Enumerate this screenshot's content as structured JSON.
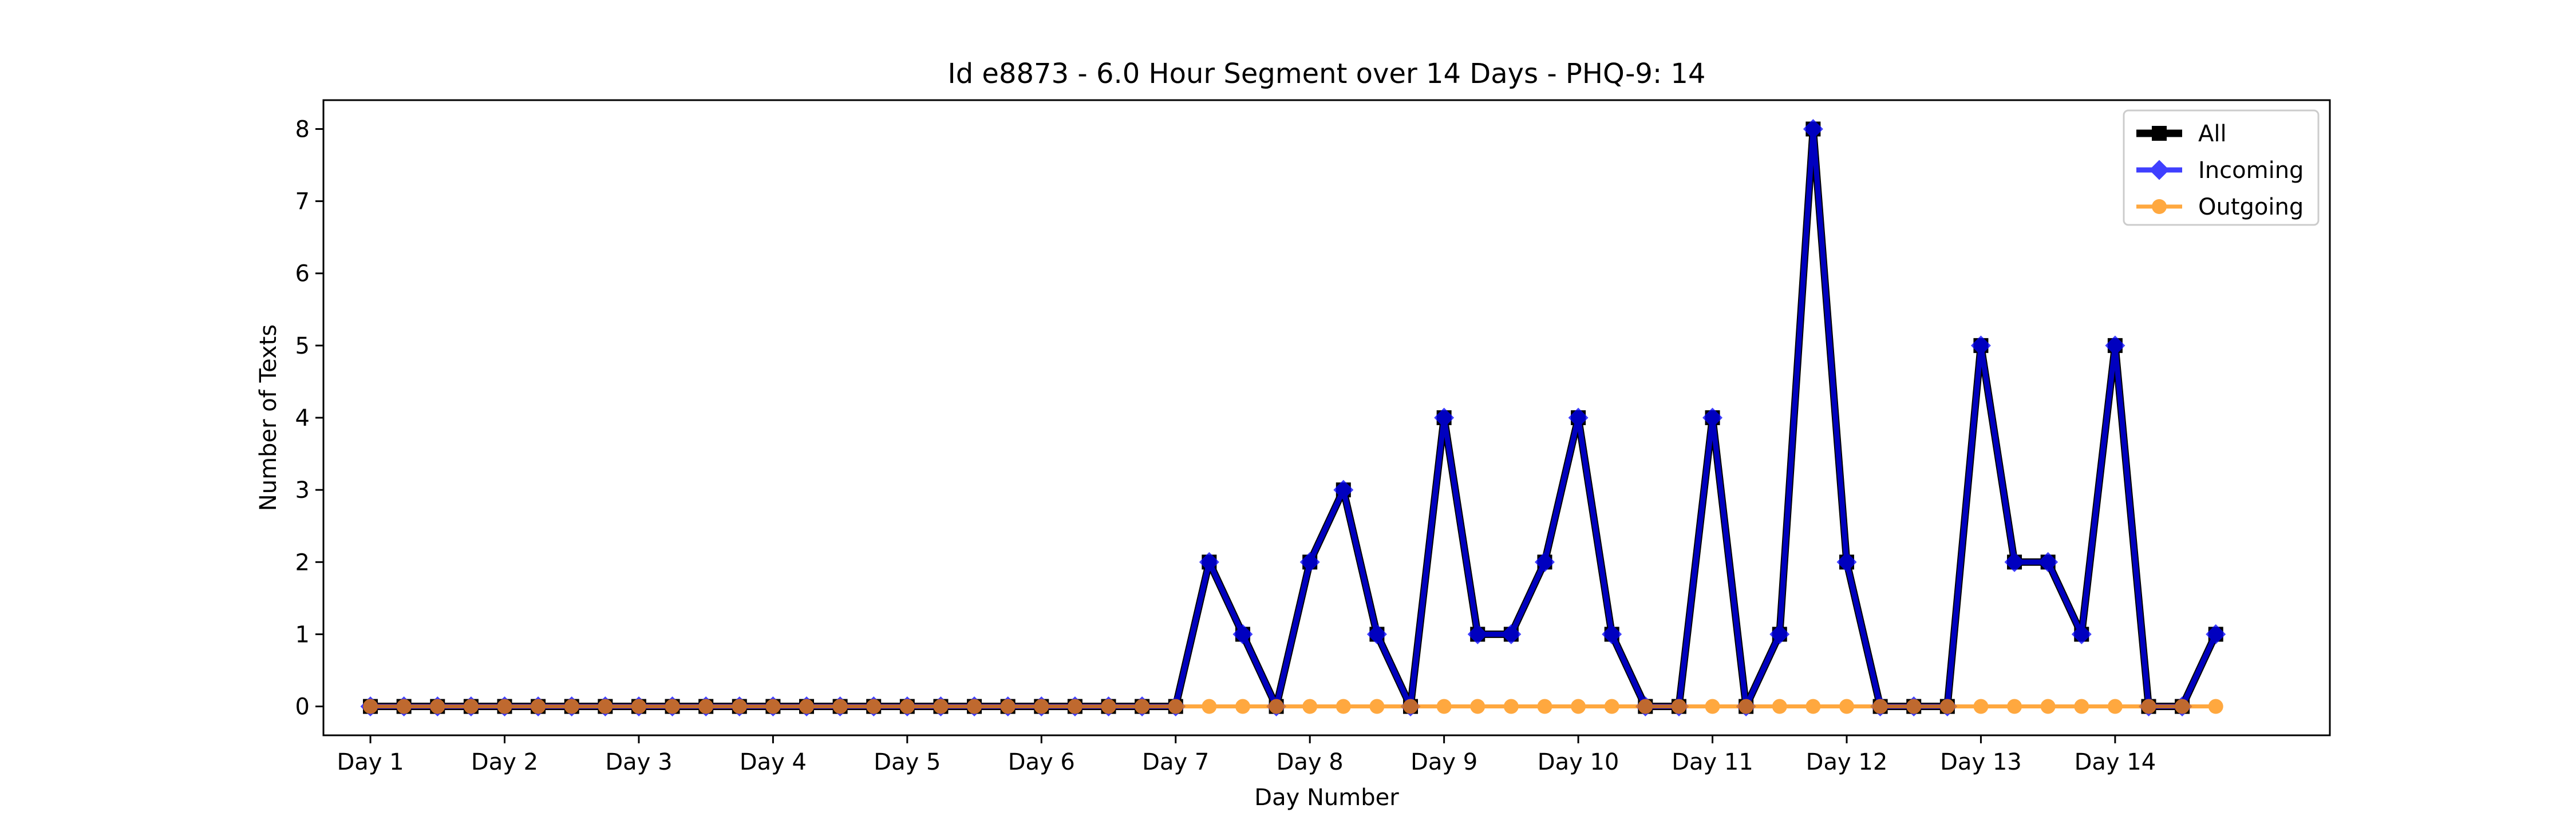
{
  "chart_data": {
    "type": "line",
    "title": "Id e8873 - 6.0 Hour Segment over 14 Days - PHQ-9: 14",
    "xlabel": "Day Number",
    "ylabel": "Number of Texts",
    "ylim": [
      -0.4,
      8.4
    ],
    "xlim": [
      -1.4,
      58.4
    ],
    "yticks": [
      0,
      1,
      2,
      3,
      4,
      5,
      6,
      7,
      8
    ],
    "xtick_positions": [
      0,
      4,
      8,
      12,
      16,
      20,
      24,
      28,
      32,
      36,
      40,
      44,
      48,
      52
    ],
    "xtick_labels": [
      "Day 1",
      "Day 2",
      "Day 3",
      "Day 4",
      "Day 5",
      "Day 6",
      "Day 7",
      "Day 8",
      "Day 9",
      "Day 10",
      "Day 11",
      "Day 12",
      "Day 13",
      "Day 14"
    ],
    "grid": false,
    "legend_position": "top-right",
    "series": [
      {
        "name": "All",
        "color": "#000000",
        "marker": "square",
        "values": [
          0,
          0,
          0,
          0,
          0,
          0,
          0,
          0,
          0,
          0,
          0,
          0,
          0,
          0,
          0,
          0,
          0,
          0,
          0,
          0,
          0,
          0,
          0,
          0,
          0,
          2,
          1,
          0,
          2,
          3,
          1,
          0,
          4,
          1,
          1,
          2,
          4,
          1,
          0,
          0,
          4,
          0,
          1,
          8,
          2,
          0,
          0,
          0,
          5,
          2,
          2,
          1,
          5,
          0,
          0,
          1
        ]
      },
      {
        "name": "Incoming",
        "color": "#0000ff",
        "marker": "diamond",
        "values": [
          0,
          0,
          0,
          0,
          0,
          0,
          0,
          0,
          0,
          0,
          0,
          0,
          0,
          0,
          0,
          0,
          0,
          0,
          0,
          0,
          0,
          0,
          0,
          0,
          0,
          2,
          1,
          0,
          2,
          3,
          1,
          0,
          4,
          1,
          1,
          2,
          4,
          1,
          0,
          0,
          4,
          0,
          1,
          8,
          2,
          0,
          0,
          0,
          5,
          2,
          2,
          1,
          5,
          0,
          0,
          1
        ]
      },
      {
        "name": "Outgoing",
        "color": "#ff8c00",
        "marker": "circle",
        "values": [
          0,
          0,
          0,
          0,
          0,
          0,
          0,
          0,
          0,
          0,
          0,
          0,
          0,
          0,
          0,
          0,
          0,
          0,
          0,
          0,
          0,
          0,
          0,
          0,
          0,
          0,
          0,
          0,
          0,
          0,
          0,
          0,
          0,
          0,
          0,
          0,
          0,
          0,
          0,
          0,
          0,
          0,
          0,
          0,
          0,
          0,
          0,
          0,
          0,
          0,
          0,
          0,
          0,
          0,
          0,
          0
        ]
      }
    ]
  }
}
